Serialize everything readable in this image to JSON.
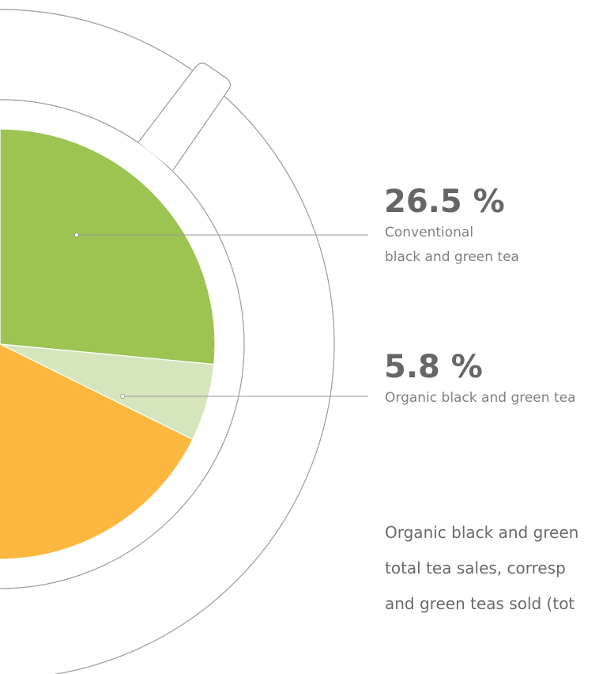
{
  "chart_data": {
    "type": "pie",
    "categories": [
      "Conventional\nblack and green tea",
      "Organic black and green tea",
      null
    ],
    "values": [
      26.5,
      5.8,
      67.7
    ],
    "value_labels": [
      "26.5 %",
      "5.8 %",
      null
    ],
    "colors": [
      "#9bc453",
      "#d5e6bc",
      "#fbb840"
    ],
    "note_lines": [
      "Organic black and green",
      "total tea sales, corresp",
      "and green teas sold (tot"
    ]
  }
}
